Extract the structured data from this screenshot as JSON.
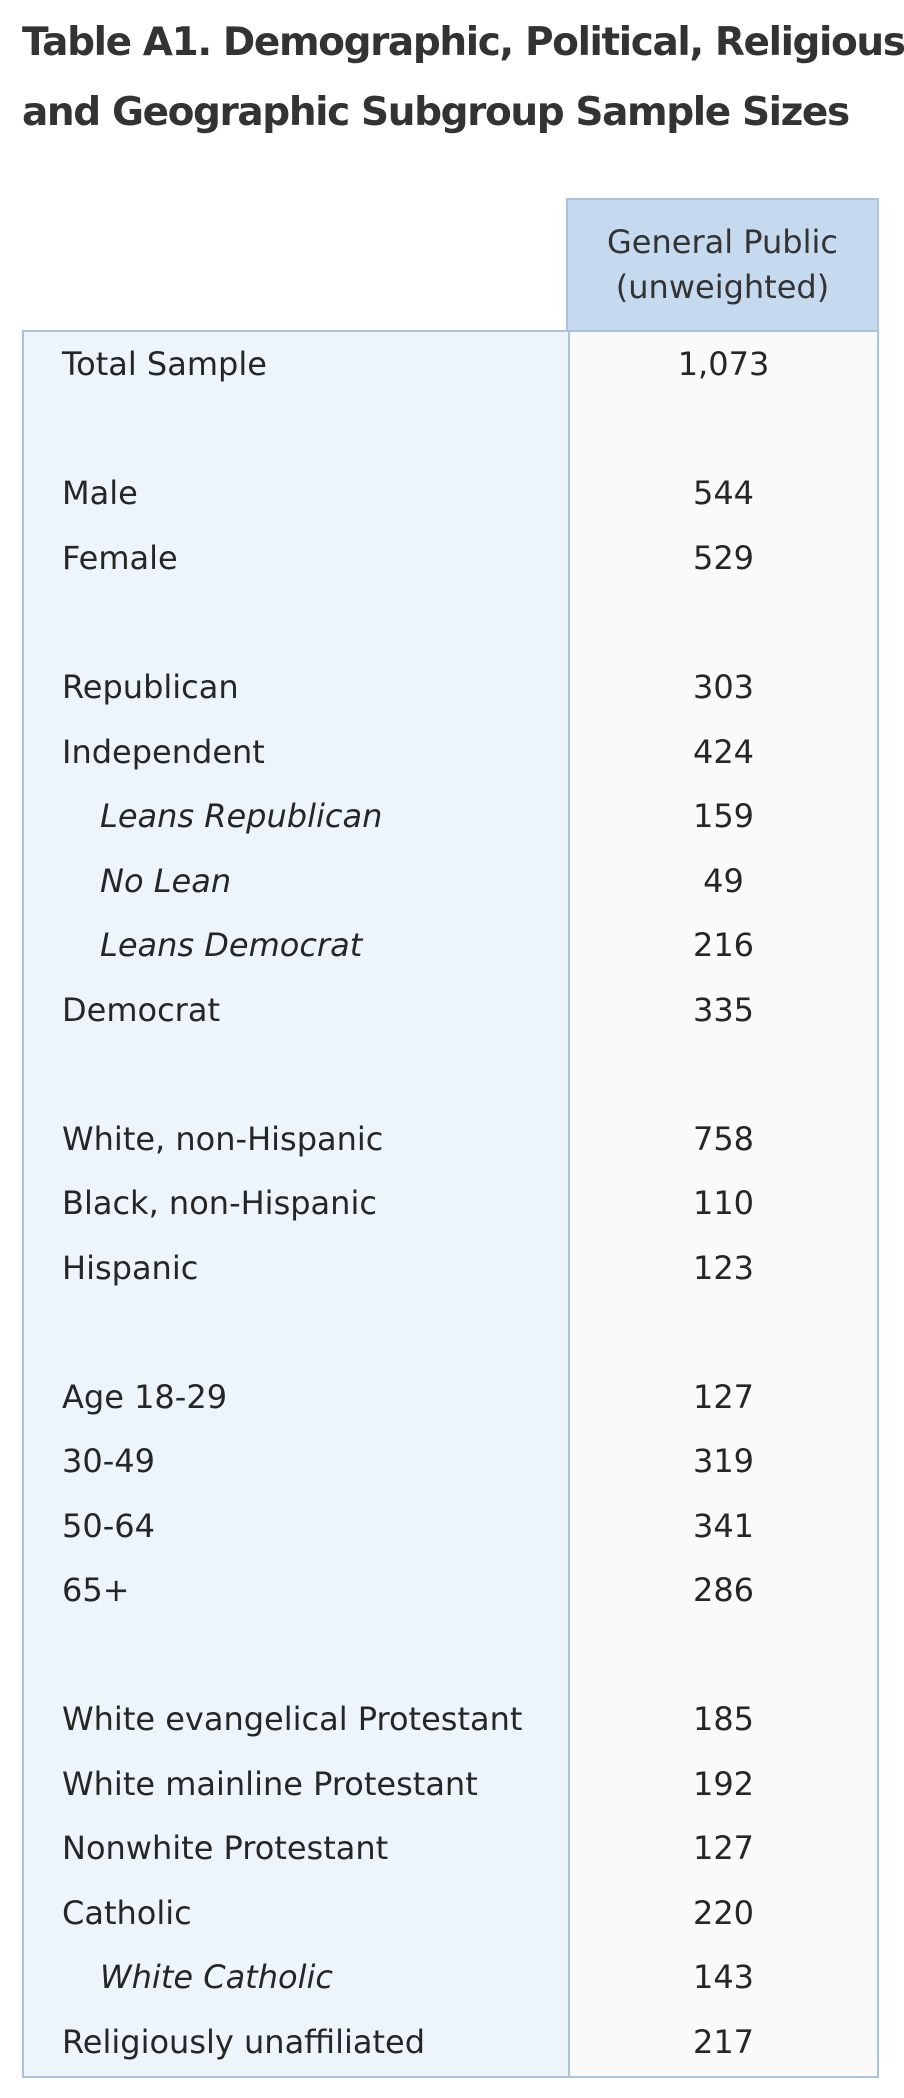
{
  "title": {
    "line1": "Table A1. Demographic, Political, Religious,",
    "line2": "and Geographic Subgroup Sample Sizes"
  },
  "column_header": {
    "line1": "General Public",
    "line2": "(unweighted)"
  },
  "rows": [
    {
      "label": "Total Sample",
      "value": "1,073",
      "indent": false
    },
    {
      "label": "Male",
      "value": "544",
      "indent": false
    },
    {
      "label": "Female",
      "value": "529",
      "indent": false
    },
    {
      "label": "Republican",
      "value": "303",
      "indent": false
    },
    {
      "label": "Independent",
      "value": "424",
      "indent": false
    },
    {
      "label": "Leans Republican",
      "value": "159",
      "indent": true
    },
    {
      "label": "No Lean",
      "value": "49",
      "indent": true
    },
    {
      "label": "Leans Democrat",
      "value": "216",
      "indent": true
    },
    {
      "label": "Democrat",
      "value": "335",
      "indent": false
    },
    {
      "label": "White, non-Hispanic",
      "value": "758",
      "indent": false
    },
    {
      "label": "Black, non-Hispanic",
      "value": "110",
      "indent": false
    },
    {
      "label": "Hispanic",
      "value": "123",
      "indent": false
    },
    {
      "label": "Age 18-29",
      "value": "127",
      "indent": false
    },
    {
      "label": "30-49",
      "value": "319",
      "indent": false
    },
    {
      "label": "50-64",
      "value": "341",
      "indent": false
    },
    {
      "label": "65+",
      "value": "286",
      "indent": false
    },
    {
      "label": "White evangelical Protestant",
      "value": "185",
      "indent": false
    },
    {
      "label": "White mainline Protestant",
      "value": "192",
      "indent": false
    },
    {
      "label": "Nonwhite Protestant",
      "value": "127",
      "indent": false
    },
    {
      "label": "Catholic",
      "value": "220",
      "indent": false
    },
    {
      "label": "White Catholic",
      "value": "143",
      "indent": true
    },
    {
      "label": "Religiously unaffiliated",
      "value": "217",
      "indent": false
    }
  ]
}
